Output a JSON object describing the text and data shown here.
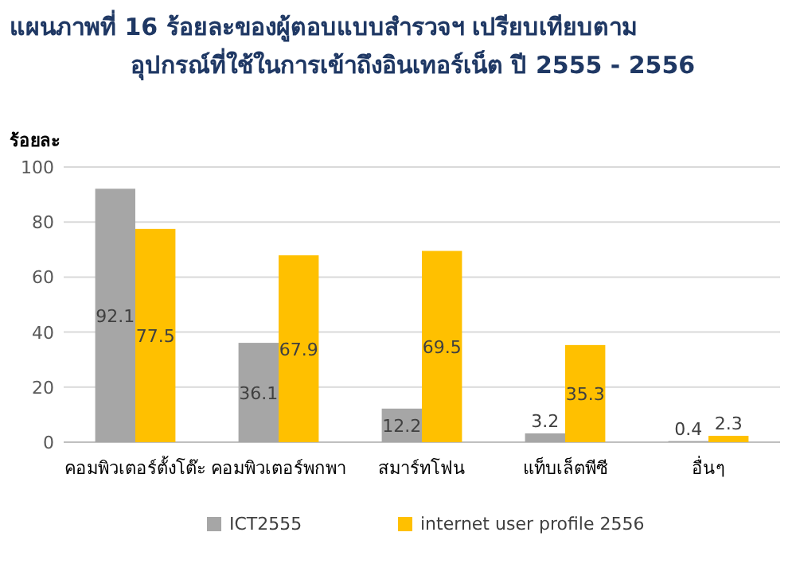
{
  "chart_data": {
    "type": "bar",
    "title": "แผนภาพที่  16 ร้อยละของผู้ตอบแบบสำรวจฯ เปรียบเทียบตาม\nอุปกรณ์ที่ใช้ในการเข้าถึงอินเทอร์เน็ต ปี 2555 - 2556",
    "ylabel": "ร้อยละ",
    "categories": [
      "คอมพิวเตอร์ตั้งโต๊ะ",
      "คอมพิวเตอร์พกพา",
      "สมาร์ทโฟน",
      "แท็บเล็ตพีซี",
      "อื่นๆ"
    ],
    "series": [
      {
        "name": "ICT2555",
        "color": "#a6a6a6",
        "values": [
          92.1,
          36.1,
          12.2,
          3.2,
          0.4
        ]
      },
      {
        "name": "internet user profile 2556",
        "color": "#ffc000",
        "values": [
          77.5,
          67.9,
          69.5,
          35.3,
          2.3
        ]
      }
    ],
    "ylim": [
      0,
      100
    ],
    "yticks": [
      0,
      20,
      40,
      60,
      80,
      100
    ],
    "grid": "y",
    "legend": "bottom",
    "data_labels": true
  }
}
